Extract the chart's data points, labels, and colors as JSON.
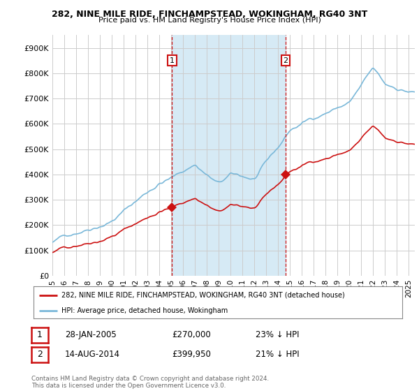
{
  "title1": "282, NINE MILE RIDE, FINCHAMPSTEAD, WOKINGHAM, RG40 3NT",
  "title2": "Price paid vs. HM Land Registry's House Price Index (HPI)",
  "ylabel_ticks": [
    "£0",
    "£100K",
    "£200K",
    "£300K",
    "£400K",
    "£500K",
    "£600K",
    "£700K",
    "£800K",
    "£900K"
  ],
  "ytick_vals": [
    0,
    100000,
    200000,
    300000,
    400000,
    500000,
    600000,
    700000,
    800000,
    900000
  ],
  "ylim": [
    0,
    950000
  ],
  "xlim_start": 1995.0,
  "xlim_end": 2025.5,
  "hpi_color": "#7ab8d9",
  "hpi_fill_color": "#d6eaf5",
  "price_color": "#cc1111",
  "vline1_x": 2005.07,
  "vline2_x": 2014.62,
  "sale1_x": 2005.07,
  "sale1_y": 270000,
  "sale2_x": 2014.62,
  "sale2_y": 399950,
  "legend_line1": "282, NINE MILE RIDE, FINCHAMPSTEAD, WOKINGHAM, RG40 3NT (detached house)",
  "legend_line2": "HPI: Average price, detached house, Wokingham",
  "info1_label": "1",
  "info1_date": "28-JAN-2005",
  "info1_price": "£270,000",
  "info1_hpi": "23% ↓ HPI",
  "info2_label": "2",
  "info2_date": "14-AUG-2014",
  "info2_price": "£399,950",
  "info2_hpi": "21% ↓ HPI",
  "footnote": "Contains HM Land Registry data © Crown copyright and database right 2024.\nThis data is licensed under the Open Government Licence v3.0.",
  "background_color": "#ffffff",
  "grid_color": "#cccccc"
}
